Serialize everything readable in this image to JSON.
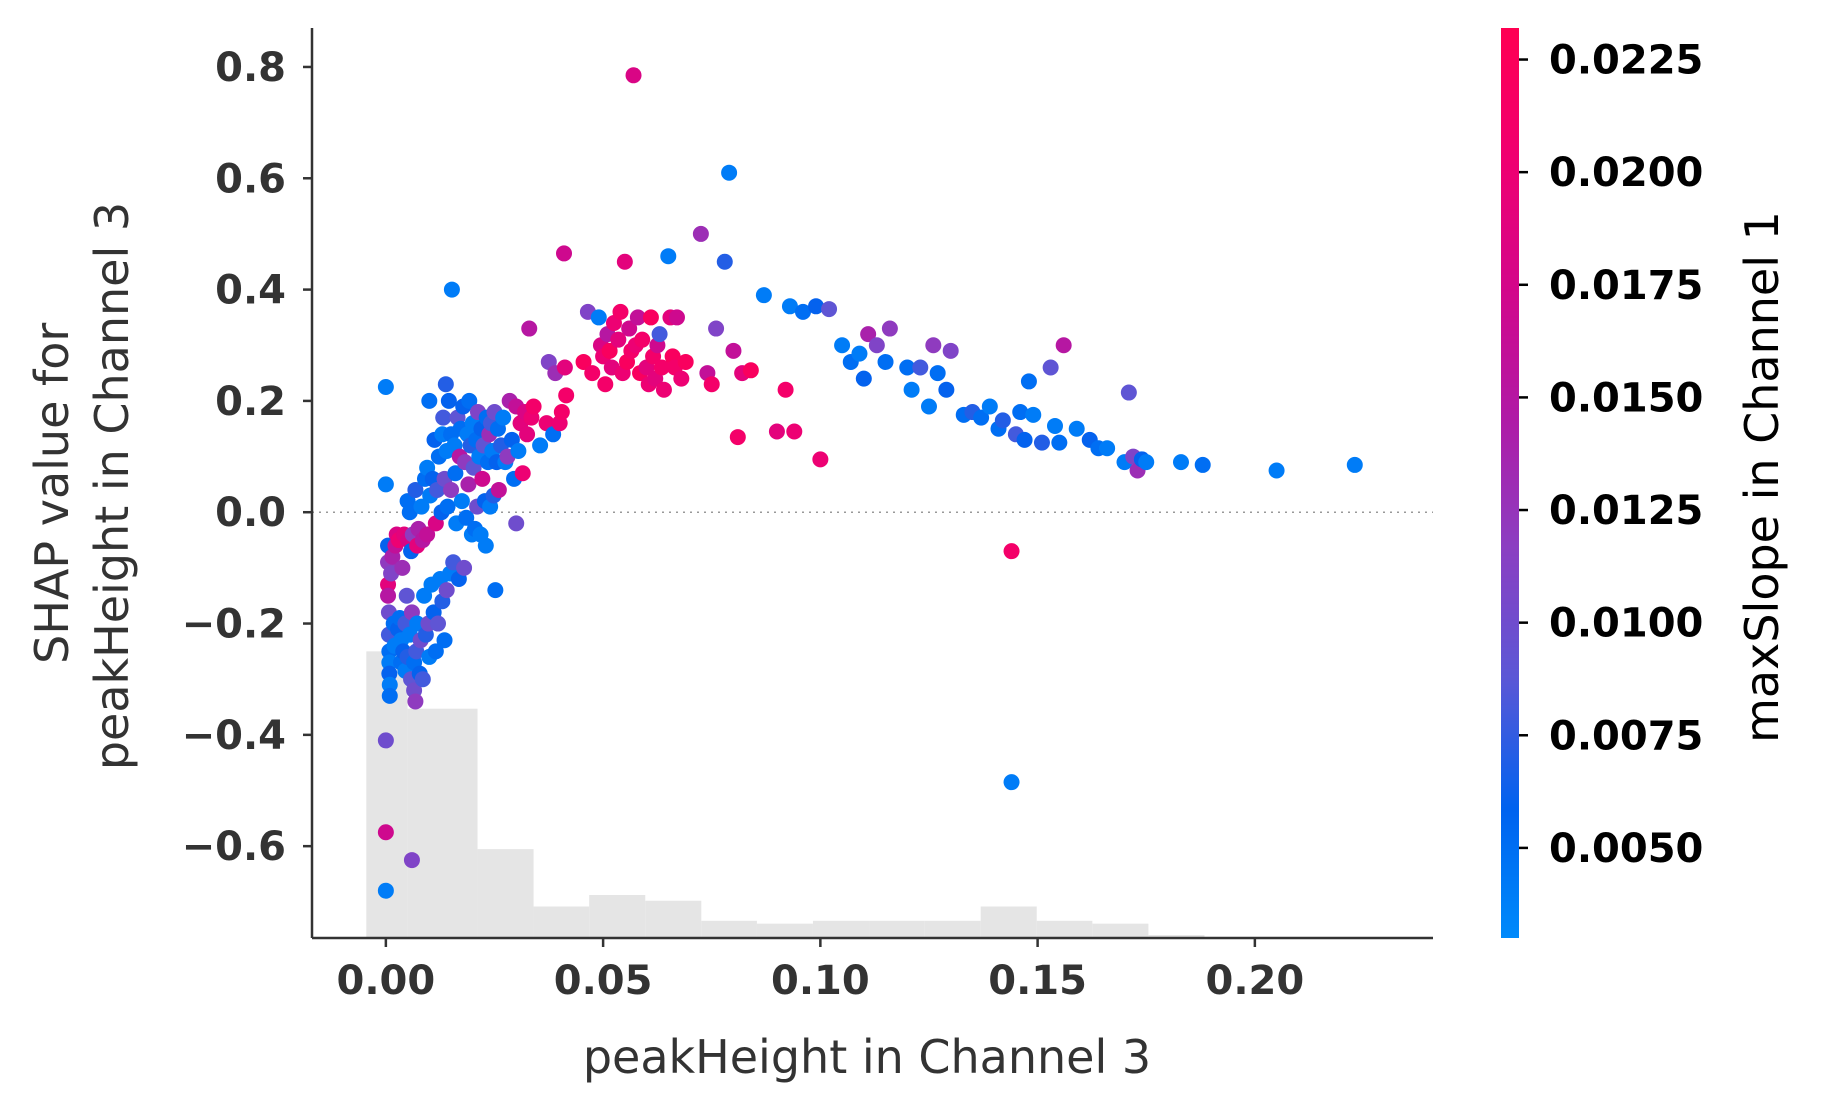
{
  "chart_data": {
    "type": "scatter",
    "xlabel": "peakHeight in Channel 3",
    "ylabel_lines": [
      "SHAP value for",
      "peakHeight in Channel 3"
    ],
    "colorbar_label": "maxSlope in Channel 1",
    "xlim": [
      -0.017,
      0.241
    ],
    "ylim": [
      -0.765,
      0.87
    ],
    "x_ticks": [
      {
        "value": 0.0,
        "label": "0.00"
      },
      {
        "value": 0.05,
        "label": "0.05"
      },
      {
        "value": 0.1,
        "label": "0.10"
      },
      {
        "value": 0.15,
        "label": "0.15"
      },
      {
        "value": 0.2,
        "label": "0.20"
      }
    ],
    "y_ticks": [
      {
        "value": 0.8,
        "label": "0.8"
      },
      {
        "value": 0.6,
        "label": "0.6"
      },
      {
        "value": 0.4,
        "label": "0.4"
      },
      {
        "value": 0.2,
        "label": "0.2"
      },
      {
        "value": 0.0,
        "label": "0.0"
      },
      {
        "value": -0.2,
        "label": "−0.2"
      },
      {
        "value": -0.4,
        "label": "−0.4"
      },
      {
        "value": -0.6,
        "label": "−0.6"
      }
    ],
    "zero_line": 0.0,
    "colorbar": {
      "range": [
        0.003,
        0.0232
      ],
      "ticks": [
        {
          "value": 0.005,
          "label": "0.0050"
        },
        {
          "value": 0.0075,
          "label": "0.0075"
        },
        {
          "value": 0.01,
          "label": "0.0100"
        },
        {
          "value": 0.0125,
          "label": "0.0125"
        },
        {
          "value": 0.015,
          "label": "0.0150"
        },
        {
          "value": 0.0175,
          "label": "0.0175"
        },
        {
          "value": 0.02,
          "label": "0.0200"
        },
        {
          "value": 0.0225,
          "label": "0.0225"
        }
      ],
      "colors": [
        "#008afb",
        "#0062ef",
        "#5b57d6",
        "#8b3fc2",
        "#b01aa6",
        "#d3068a",
        "#f00070",
        "#ff0052"
      ]
    },
    "histogram": {
      "color": "#e5e5e5",
      "bin_edges": [
        -0.0045,
        0.005,
        0.0211,
        0.034,
        0.0468,
        0.0597,
        0.0726,
        0.0854,
        0.0983,
        0.1112,
        0.124,
        0.1369,
        0.1498,
        0.1626,
        0.1755,
        0.1884
      ],
      "relative_heights": [
        1.0,
        0.8,
        0.31,
        0.11,
        0.15,
        0.13,
        0.06,
        0.05,
        0.06,
        0.06,
        0.06,
        0.11,
        0.06,
        0.05,
        0.01
      ]
    },
    "points": [
      [
        0.0,
        0.225,
        0.004
      ],
      [
        0.0,
        0.05,
        0.004
      ],
      [
        0.0,
        -0.68,
        0.004
      ],
      [
        0.0,
        -0.575,
        0.017
      ],
      [
        0.0,
        -0.41,
        0.01
      ],
      [
        0.0005,
        -0.06,
        0.006
      ],
      [
        0.0005,
        -0.09,
        0.012
      ],
      [
        0.0005,
        -0.13,
        0.019
      ],
      [
        0.0005,
        -0.15,
        0.015
      ],
      [
        0.0007,
        -0.18,
        0.01
      ],
      [
        0.0007,
        -0.22,
        0.008
      ],
      [
        0.0008,
        -0.25,
        0.005
      ],
      [
        0.0008,
        -0.27,
        0.004
      ],
      [
        0.0008,
        -0.29,
        0.006
      ],
      [
        0.0009,
        -0.31,
        0.004
      ],
      [
        0.0009,
        -0.33,
        0.005
      ],
      [
        0.0012,
        -0.11,
        0.011
      ],
      [
        0.0015,
        -0.08,
        0.014
      ],
      [
        0.0018,
        -0.2,
        0.005
      ],
      [
        0.002,
        -0.24,
        0.004
      ],
      [
        0.0022,
        -0.06,
        0.016
      ],
      [
        0.0025,
        -0.04,
        0.018
      ],
      [
        0.0028,
        -0.21,
        0.006
      ],
      [
        0.003,
        -0.05,
        0.02
      ],
      [
        0.0032,
        -0.19,
        0.005
      ],
      [
        0.0035,
        -0.23,
        0.004
      ],
      [
        0.0035,
        -0.27,
        0.005
      ],
      [
        0.0038,
        -0.1,
        0.013
      ],
      [
        0.004,
        -0.25,
        0.006
      ],
      [
        0.0042,
        -0.04,
        0.019
      ],
      [
        0.0045,
        -0.2,
        0.008
      ],
      [
        0.0045,
        -0.285,
        0.004
      ],
      [
        0.0048,
        -0.15,
        0.009
      ],
      [
        0.005,
        0.02,
        0.005
      ],
      [
        0.005,
        -0.26,
        0.007
      ],
      [
        0.0052,
        -0.05,
        0.018
      ],
      [
        0.0055,
        0.0,
        0.005
      ],
      [
        0.0055,
        -0.22,
        0.004
      ],
      [
        0.0058,
        -0.07,
        0.006
      ],
      [
        0.0058,
        -0.3,
        0.009
      ],
      [
        0.006,
        -0.625,
        0.011
      ],
      [
        0.006,
        -0.18,
        0.012
      ],
      [
        0.0062,
        -0.04,
        0.012
      ],
      [
        0.0065,
        -0.27,
        0.005
      ],
      [
        0.0065,
        -0.32,
        0.01
      ],
      [
        0.0068,
        0.04,
        0.007
      ],
      [
        0.0068,
        -0.34,
        0.012
      ],
      [
        0.007,
        -0.25,
        0.008
      ],
      [
        0.0072,
        -0.06,
        0.019
      ],
      [
        0.0072,
        -0.2,
        0.004
      ],
      [
        0.0075,
        -0.03,
        0.014
      ],
      [
        0.0078,
        -0.29,
        0.006
      ],
      [
        0.008,
        -0.23,
        0.01
      ],
      [
        0.0082,
        0.01,
        0.004
      ],
      [
        0.0085,
        -0.05,
        0.015
      ],
      [
        0.0085,
        -0.3,
        0.008
      ],
      [
        0.0088,
        -0.15,
        0.004
      ],
      [
        0.009,
        0.06,
        0.005
      ],
      [
        0.0092,
        -0.22,
        0.007
      ],
      [
        0.0095,
        0.08,
        0.004
      ],
      [
        0.0095,
        -0.04,
        0.016
      ],
      [
        0.0098,
        -0.2,
        0.01
      ],
      [
        0.01,
        0.2,
        0.005
      ],
      [
        0.01,
        -0.26,
        0.004
      ],
      [
        0.0102,
        0.03,
        0.004
      ],
      [
        0.0105,
        -0.13,
        0.004
      ],
      [
        0.0108,
        0.06,
        0.006
      ],
      [
        0.011,
        -0.18,
        0.006
      ],
      [
        0.0112,
        0.13,
        0.006
      ],
      [
        0.0115,
        -0.02,
        0.018
      ],
      [
        0.0115,
        -0.25,
        0.005
      ],
      [
        0.0118,
        0.04,
        0.008
      ],
      [
        0.012,
        -0.2,
        0.009
      ],
      [
        0.0122,
        0.1,
        0.005
      ],
      [
        0.0125,
        -0.12,
        0.004
      ],
      [
        0.0128,
        0.0,
        0.006
      ],
      [
        0.013,
        0.14,
        0.004
      ],
      [
        0.013,
        -0.16,
        0.007
      ],
      [
        0.0132,
        0.17,
        0.008
      ],
      [
        0.0135,
        0.06,
        0.01
      ],
      [
        0.0135,
        -0.23,
        0.005
      ],
      [
        0.0138,
        0.23,
        0.007
      ],
      [
        0.014,
        0.11,
        0.004
      ],
      [
        0.014,
        -0.14,
        0.01
      ],
      [
        0.0142,
        0.01,
        0.005
      ],
      [
        0.0145,
        0.2,
        0.006
      ],
      [
        0.0148,
        -0.11,
        0.004
      ],
      [
        0.015,
        0.14,
        0.005
      ],
      [
        0.015,
        0.04,
        0.012
      ],
      [
        0.0152,
        0.4,
        0.004
      ],
      [
        0.0155,
        -0.09,
        0.008
      ],
      [
        0.0158,
        0.12,
        0.004
      ],
      [
        0.016,
        0.07,
        0.005
      ],
      [
        0.0162,
        -0.02,
        0.004
      ],
      [
        0.0165,
        0.17,
        0.009
      ],
      [
        0.0168,
        -0.12,
        0.006
      ],
      [
        0.017,
        0.1,
        0.015
      ],
      [
        0.0172,
        0.15,
        0.005
      ],
      [
        0.0175,
        0.02,
        0.004
      ],
      [
        0.0178,
        0.19,
        0.006
      ],
      [
        0.018,
        -0.1,
        0.01
      ],
      [
        0.0182,
        0.09,
        0.012
      ],
      [
        0.0185,
        -0.01,
        0.005
      ],
      [
        0.0188,
        0.14,
        0.004
      ],
      [
        0.019,
        0.05,
        0.014
      ],
      [
        0.0192,
        0.2,
        0.005
      ],
      [
        0.0195,
        0.12,
        0.007
      ],
      [
        0.0198,
        -0.04,
        0.004
      ],
      [
        0.02,
        0.16,
        0.004
      ],
      [
        0.0202,
        0.08,
        0.009
      ],
      [
        0.0205,
        -0.03,
        0.005
      ],
      [
        0.0208,
        0.13,
        0.005
      ],
      [
        0.021,
        0.01,
        0.01
      ],
      [
        0.0212,
        0.18,
        0.011
      ],
      [
        0.0215,
        0.1,
        0.004
      ],
      [
        0.0218,
        -0.04,
        0.004
      ],
      [
        0.022,
        0.15,
        0.006
      ],
      [
        0.0222,
        0.06,
        0.017
      ],
      [
        0.0225,
        0.12,
        0.009
      ],
      [
        0.0228,
        0.02,
        0.006
      ],
      [
        0.023,
        -0.06,
        0.004
      ],
      [
        0.0232,
        0.17,
        0.005
      ],
      [
        0.0235,
        0.09,
        0.005
      ],
      [
        0.0238,
        0.14,
        0.013
      ],
      [
        0.024,
        0.01,
        0.004
      ],
      [
        0.0242,
        0.16,
        0.008
      ],
      [
        0.0245,
        0.11,
        0.004
      ],
      [
        0.0248,
        0.03,
        0.007
      ],
      [
        0.025,
        0.18,
        0.01
      ],
      [
        0.0252,
        -0.14,
        0.005
      ],
      [
        0.0255,
        0.09,
        0.006
      ],
      [
        0.0258,
        0.15,
        0.005
      ],
      [
        0.026,
        0.04,
        0.016
      ],
      [
        0.0265,
        0.12,
        0.007
      ],
      [
        0.027,
        0.17,
        0.004
      ],
      [
        0.0275,
        0.09,
        0.004
      ],
      [
        0.028,
        0.1,
        0.012
      ],
      [
        0.0285,
        0.2,
        0.014
      ],
      [
        0.029,
        0.13,
        0.006
      ],
      [
        0.0295,
        0.06,
        0.005
      ],
      [
        0.03,
        -0.02,
        0.01
      ],
      [
        0.03,
        0.19,
        0.016
      ],
      [
        0.0305,
        0.11,
        0.004
      ],
      [
        0.031,
        0.16,
        0.019
      ],
      [
        0.0315,
        0.07,
        0.02
      ],
      [
        0.032,
        0.18,
        0.018
      ],
      [
        0.0325,
        0.14,
        0.019
      ],
      [
        0.033,
        0.33,
        0.015
      ],
      [
        0.0335,
        0.17,
        0.02
      ],
      [
        0.034,
        0.19,
        0.021
      ],
      [
        0.0355,
        0.12,
        0.004
      ],
      [
        0.037,
        0.16,
        0.02
      ],
      [
        0.0375,
        0.27,
        0.011
      ],
      [
        0.0385,
        0.14,
        0.005
      ],
      [
        0.039,
        0.25,
        0.013
      ],
      [
        0.04,
        0.16,
        0.02
      ],
      [
        0.0405,
        0.18,
        0.021
      ],
      [
        0.041,
        0.465,
        0.017
      ],
      [
        0.0412,
        0.26,
        0.019
      ],
      [
        0.0415,
        0.21,
        0.021
      ],
      [
        0.0455,
        0.27,
        0.022
      ],
      [
        0.0465,
        0.36,
        0.011
      ],
      [
        0.0475,
        0.25,
        0.021
      ],
      [
        0.049,
        0.35,
        0.004
      ],
      [
        0.0495,
        0.3,
        0.018
      ],
      [
        0.05,
        0.28,
        0.02
      ],
      [
        0.0505,
        0.23,
        0.021
      ],
      [
        0.051,
        0.32,
        0.015
      ],
      [
        0.0515,
        0.29,
        0.022
      ],
      [
        0.052,
        0.26,
        0.019
      ],
      [
        0.0525,
        0.34,
        0.02
      ],
      [
        0.0535,
        0.31,
        0.019
      ],
      [
        0.054,
        0.36,
        0.021
      ],
      [
        0.0545,
        0.25,
        0.02
      ],
      [
        0.055,
        0.45,
        0.019
      ],
      [
        0.0555,
        0.27,
        0.022
      ],
      [
        0.056,
        0.33,
        0.017
      ],
      [
        0.0565,
        0.29,
        0.021
      ],
      [
        0.057,
        0.785,
        0.018
      ],
      [
        0.0575,
        0.3,
        0.02
      ],
      [
        0.058,
        0.35,
        0.016
      ],
      [
        0.0585,
        0.25,
        0.022
      ],
      [
        0.059,
        0.31,
        0.021
      ],
      [
        0.06,
        0.26,
        0.019
      ],
      [
        0.0605,
        0.23,
        0.02
      ],
      [
        0.061,
        0.35,
        0.022
      ],
      [
        0.0615,
        0.28,
        0.021
      ],
      [
        0.062,
        0.24,
        0.019
      ],
      [
        0.0625,
        0.3,
        0.017
      ],
      [
        0.063,
        0.32,
        0.008
      ],
      [
        0.0635,
        0.26,
        0.021
      ],
      [
        0.064,
        0.22,
        0.02
      ],
      [
        0.065,
        0.46,
        0.004
      ],
      [
        0.0655,
        0.35,
        0.019
      ],
      [
        0.066,
        0.28,
        0.022
      ],
      [
        0.0665,
        0.26,
        0.021
      ],
      [
        0.067,
        0.35,
        0.017
      ],
      [
        0.068,
        0.24,
        0.02
      ],
      [
        0.069,
        0.27,
        0.022
      ],
      [
        0.0725,
        0.5,
        0.013
      ],
      [
        0.074,
        0.25,
        0.016
      ],
      [
        0.075,
        0.23,
        0.021
      ],
      [
        0.076,
        0.33,
        0.011
      ],
      [
        0.078,
        0.45,
        0.007
      ],
      [
        0.079,
        0.61,
        0.004
      ],
      [
        0.08,
        0.29,
        0.016
      ],
      [
        0.081,
        0.135,
        0.021
      ],
      [
        0.082,
        0.25,
        0.019
      ],
      [
        0.084,
        0.255,
        0.022
      ],
      [
        0.087,
        0.39,
        0.004
      ],
      [
        0.09,
        0.145,
        0.019
      ],
      [
        0.092,
        0.22,
        0.021
      ],
      [
        0.093,
        0.37,
        0.004
      ],
      [
        0.094,
        0.145,
        0.02
      ],
      [
        0.096,
        0.36,
        0.005
      ],
      [
        0.099,
        0.37,
        0.006
      ],
      [
        0.1,
        0.095,
        0.02
      ],
      [
        0.102,
        0.365,
        0.009
      ],
      [
        0.105,
        0.3,
        0.004
      ],
      [
        0.107,
        0.27,
        0.005
      ],
      [
        0.109,
        0.285,
        0.004
      ],
      [
        0.11,
        0.24,
        0.006
      ],
      [
        0.111,
        0.32,
        0.014
      ],
      [
        0.113,
        0.3,
        0.011
      ],
      [
        0.115,
        0.27,
        0.005
      ],
      [
        0.116,
        0.33,
        0.012
      ],
      [
        0.12,
        0.26,
        0.005
      ],
      [
        0.121,
        0.22,
        0.004
      ],
      [
        0.123,
        0.26,
        0.008
      ],
      [
        0.125,
        0.19,
        0.004
      ],
      [
        0.126,
        0.3,
        0.012
      ],
      [
        0.127,
        0.25,
        0.005
      ],
      [
        0.129,
        0.22,
        0.006
      ],
      [
        0.13,
        0.29,
        0.011
      ],
      [
        0.133,
        0.175,
        0.005
      ],
      [
        0.135,
        0.18,
        0.007
      ],
      [
        0.137,
        0.17,
        0.005
      ],
      [
        0.139,
        0.19,
        0.004
      ],
      [
        0.141,
        0.15,
        0.005
      ],
      [
        0.142,
        0.165,
        0.007
      ],
      [
        0.144,
        -0.07,
        0.021
      ],
      [
        0.144,
        -0.485,
        0.004
      ],
      [
        0.145,
        0.14,
        0.008
      ],
      [
        0.146,
        0.18,
        0.005
      ],
      [
        0.147,
        0.13,
        0.006
      ],
      [
        0.148,
        0.235,
        0.005
      ],
      [
        0.149,
        0.175,
        0.004
      ],
      [
        0.151,
        0.125,
        0.007
      ],
      [
        0.153,
        0.26,
        0.009
      ],
      [
        0.154,
        0.155,
        0.004
      ],
      [
        0.155,
        0.125,
        0.005
      ],
      [
        0.156,
        0.3,
        0.015
      ],
      [
        0.159,
        0.15,
        0.004
      ],
      [
        0.162,
        0.13,
        0.006
      ],
      [
        0.164,
        0.115,
        0.005
      ],
      [
        0.166,
        0.115,
        0.004
      ],
      [
        0.17,
        0.09,
        0.004
      ],
      [
        0.171,
        0.215,
        0.009
      ],
      [
        0.172,
        0.1,
        0.011
      ],
      [
        0.173,
        0.075,
        0.013
      ],
      [
        0.174,
        0.095,
        0.006
      ],
      [
        0.175,
        0.09,
        0.004
      ],
      [
        0.183,
        0.09,
        0.004
      ],
      [
        0.188,
        0.085,
        0.005
      ],
      [
        0.205,
        0.075,
        0.004
      ],
      [
        0.223,
        0.085,
        0.004
      ]
    ]
  }
}
